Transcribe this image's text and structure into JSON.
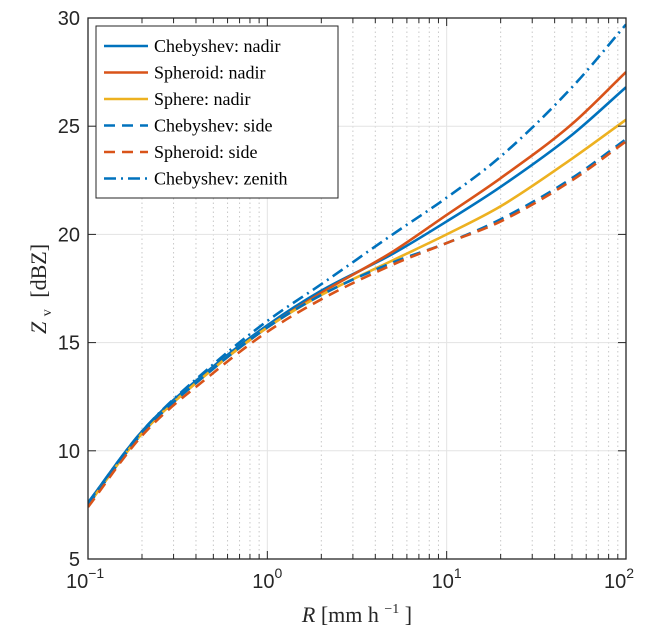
{
  "chart_data": {
    "type": "line",
    "title": "",
    "xlabel": {
      "main": "R",
      "unit": "[mm h",
      "exp": "−1",
      "close": "]"
    },
    "ylabel": {
      "main": "Z",
      "sub": "v",
      "unit": "[dBZ]"
    },
    "xscale": "log",
    "xlim": [
      0.1,
      100
    ],
    "ylim": [
      5,
      30
    ],
    "grid": true,
    "legend_position": "top-left",
    "xticks": [
      {
        "value": 0.1,
        "base": "10",
        "exp": "−1"
      },
      {
        "value": 1,
        "base": "10",
        "exp": "0"
      },
      {
        "value": 10,
        "base": "10",
        "exp": "1"
      },
      {
        "value": 100,
        "base": "10",
        "exp": "2"
      }
    ],
    "yticks": [
      "5",
      "10",
      "15",
      "20",
      "25",
      "30"
    ],
    "x": [
      0.1,
      0.2,
      0.5,
      1,
      2,
      5,
      10,
      20,
      50,
      100
    ],
    "series": [
      {
        "name": "Chebyshev: nadir",
        "color": "#0072BD",
        "dash": "solid",
        "values": [
          7.6,
          10.9,
          13.9,
          15.8,
          17.4,
          19.1,
          20.6,
          22.2,
          24.6,
          26.8
        ]
      },
      {
        "name": "Spheroid: nadir",
        "color": "#D95319",
        "dash": "solid",
        "values": [
          7.5,
          10.8,
          13.8,
          15.7,
          17.3,
          19.2,
          20.9,
          22.6,
          25.1,
          27.5
        ]
      },
      {
        "name": "Sphere: nadir",
        "color": "#EDB120",
        "dash": "solid",
        "values": [
          7.5,
          10.8,
          13.8,
          15.7,
          17.2,
          18.8,
          20.0,
          21.3,
          23.5,
          25.3
        ]
      },
      {
        "name": "Chebyshev: side",
        "color": "#0072BD",
        "dash": "dashed",
        "values": [
          7.5,
          10.8,
          13.8,
          15.7,
          17.2,
          18.7,
          19.6,
          20.7,
          22.6,
          24.4
        ]
      },
      {
        "name": "Spheroid: side",
        "color": "#D95319",
        "dash": "dashed",
        "values": [
          7.4,
          10.7,
          13.6,
          15.5,
          17.0,
          18.6,
          19.6,
          20.6,
          22.5,
          24.3
        ]
      },
      {
        "name": "Chebyshev: zenith",
        "color": "#0072BD",
        "dash": "dashdot",
        "values": [
          7.6,
          10.9,
          14.0,
          16.0,
          17.7,
          20.0,
          21.7,
          23.6,
          26.8,
          29.7
        ]
      }
    ]
  }
}
